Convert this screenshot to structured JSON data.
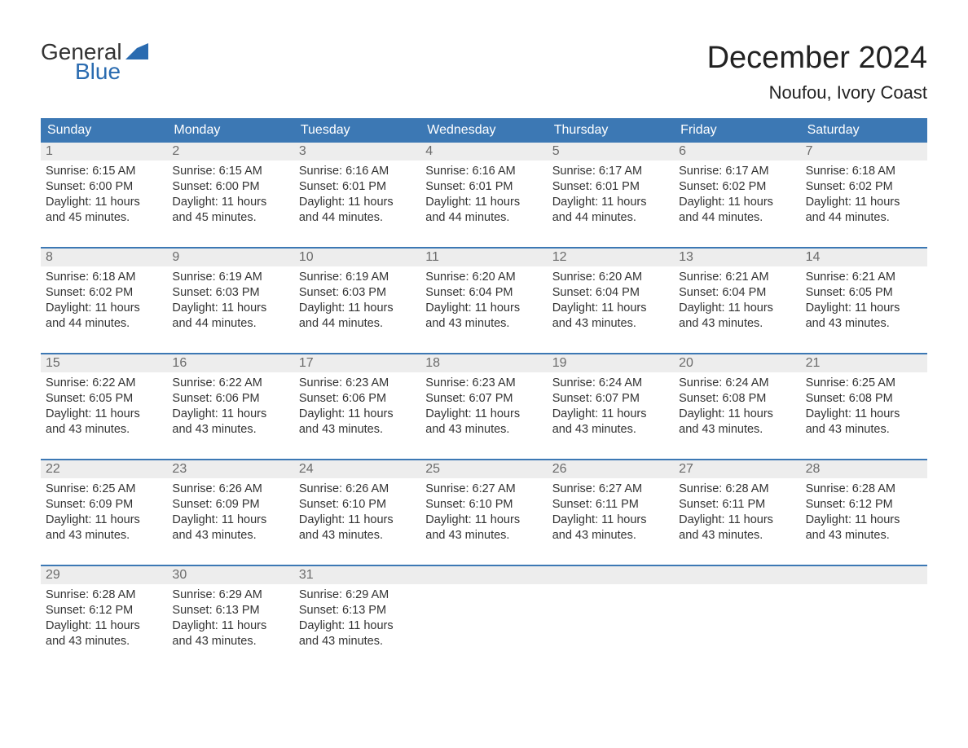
{
  "logo": {
    "text_general": "General",
    "text_blue": "Blue",
    "accent_color": "#2a6bb0"
  },
  "title": {
    "month": "December 2024",
    "location": "Noufou, Ivory Coast"
  },
  "calendar": {
    "header_bg": "#3c78b4",
    "header_fg": "#ffffff",
    "daynum_bg": "#ededed",
    "daynum_fg": "#6b6b6b",
    "rule_color": "#3c78b4",
    "text_color": "#333333",
    "days_of_week": [
      "Sunday",
      "Monday",
      "Tuesday",
      "Wednesday",
      "Thursday",
      "Friday",
      "Saturday"
    ],
    "weeks": [
      [
        {
          "n": "1",
          "sunrise": "Sunrise: 6:15 AM",
          "sunset": "Sunset: 6:00 PM",
          "d1": "Daylight: 11 hours",
          "d2": "and 45 minutes."
        },
        {
          "n": "2",
          "sunrise": "Sunrise: 6:15 AM",
          "sunset": "Sunset: 6:00 PM",
          "d1": "Daylight: 11 hours",
          "d2": "and 45 minutes."
        },
        {
          "n": "3",
          "sunrise": "Sunrise: 6:16 AM",
          "sunset": "Sunset: 6:01 PM",
          "d1": "Daylight: 11 hours",
          "d2": "and 44 minutes."
        },
        {
          "n": "4",
          "sunrise": "Sunrise: 6:16 AM",
          "sunset": "Sunset: 6:01 PM",
          "d1": "Daylight: 11 hours",
          "d2": "and 44 minutes."
        },
        {
          "n": "5",
          "sunrise": "Sunrise: 6:17 AM",
          "sunset": "Sunset: 6:01 PM",
          "d1": "Daylight: 11 hours",
          "d2": "and 44 minutes."
        },
        {
          "n": "6",
          "sunrise": "Sunrise: 6:17 AM",
          "sunset": "Sunset: 6:02 PM",
          "d1": "Daylight: 11 hours",
          "d2": "and 44 minutes."
        },
        {
          "n": "7",
          "sunrise": "Sunrise: 6:18 AM",
          "sunset": "Sunset: 6:02 PM",
          "d1": "Daylight: 11 hours",
          "d2": "and 44 minutes."
        }
      ],
      [
        {
          "n": "8",
          "sunrise": "Sunrise: 6:18 AM",
          "sunset": "Sunset: 6:02 PM",
          "d1": "Daylight: 11 hours",
          "d2": "and 44 minutes."
        },
        {
          "n": "9",
          "sunrise": "Sunrise: 6:19 AM",
          "sunset": "Sunset: 6:03 PM",
          "d1": "Daylight: 11 hours",
          "d2": "and 44 minutes."
        },
        {
          "n": "10",
          "sunrise": "Sunrise: 6:19 AM",
          "sunset": "Sunset: 6:03 PM",
          "d1": "Daylight: 11 hours",
          "d2": "and 44 minutes."
        },
        {
          "n": "11",
          "sunrise": "Sunrise: 6:20 AM",
          "sunset": "Sunset: 6:04 PM",
          "d1": "Daylight: 11 hours",
          "d2": "and 43 minutes."
        },
        {
          "n": "12",
          "sunrise": "Sunrise: 6:20 AM",
          "sunset": "Sunset: 6:04 PM",
          "d1": "Daylight: 11 hours",
          "d2": "and 43 minutes."
        },
        {
          "n": "13",
          "sunrise": "Sunrise: 6:21 AM",
          "sunset": "Sunset: 6:04 PM",
          "d1": "Daylight: 11 hours",
          "d2": "and 43 minutes."
        },
        {
          "n": "14",
          "sunrise": "Sunrise: 6:21 AM",
          "sunset": "Sunset: 6:05 PM",
          "d1": "Daylight: 11 hours",
          "d2": "and 43 minutes."
        }
      ],
      [
        {
          "n": "15",
          "sunrise": "Sunrise: 6:22 AM",
          "sunset": "Sunset: 6:05 PM",
          "d1": "Daylight: 11 hours",
          "d2": "and 43 minutes."
        },
        {
          "n": "16",
          "sunrise": "Sunrise: 6:22 AM",
          "sunset": "Sunset: 6:06 PM",
          "d1": "Daylight: 11 hours",
          "d2": "and 43 minutes."
        },
        {
          "n": "17",
          "sunrise": "Sunrise: 6:23 AM",
          "sunset": "Sunset: 6:06 PM",
          "d1": "Daylight: 11 hours",
          "d2": "and 43 minutes."
        },
        {
          "n": "18",
          "sunrise": "Sunrise: 6:23 AM",
          "sunset": "Sunset: 6:07 PM",
          "d1": "Daylight: 11 hours",
          "d2": "and 43 minutes."
        },
        {
          "n": "19",
          "sunrise": "Sunrise: 6:24 AM",
          "sunset": "Sunset: 6:07 PM",
          "d1": "Daylight: 11 hours",
          "d2": "and 43 minutes."
        },
        {
          "n": "20",
          "sunrise": "Sunrise: 6:24 AM",
          "sunset": "Sunset: 6:08 PM",
          "d1": "Daylight: 11 hours",
          "d2": "and 43 minutes."
        },
        {
          "n": "21",
          "sunrise": "Sunrise: 6:25 AM",
          "sunset": "Sunset: 6:08 PM",
          "d1": "Daylight: 11 hours",
          "d2": "and 43 minutes."
        }
      ],
      [
        {
          "n": "22",
          "sunrise": "Sunrise: 6:25 AM",
          "sunset": "Sunset: 6:09 PM",
          "d1": "Daylight: 11 hours",
          "d2": "and 43 minutes."
        },
        {
          "n": "23",
          "sunrise": "Sunrise: 6:26 AM",
          "sunset": "Sunset: 6:09 PM",
          "d1": "Daylight: 11 hours",
          "d2": "and 43 minutes."
        },
        {
          "n": "24",
          "sunrise": "Sunrise: 6:26 AM",
          "sunset": "Sunset: 6:10 PM",
          "d1": "Daylight: 11 hours",
          "d2": "and 43 minutes."
        },
        {
          "n": "25",
          "sunrise": "Sunrise: 6:27 AM",
          "sunset": "Sunset: 6:10 PM",
          "d1": "Daylight: 11 hours",
          "d2": "and 43 minutes."
        },
        {
          "n": "26",
          "sunrise": "Sunrise: 6:27 AM",
          "sunset": "Sunset: 6:11 PM",
          "d1": "Daylight: 11 hours",
          "d2": "and 43 minutes."
        },
        {
          "n": "27",
          "sunrise": "Sunrise: 6:28 AM",
          "sunset": "Sunset: 6:11 PM",
          "d1": "Daylight: 11 hours",
          "d2": "and 43 minutes."
        },
        {
          "n": "28",
          "sunrise": "Sunrise: 6:28 AM",
          "sunset": "Sunset: 6:12 PM",
          "d1": "Daylight: 11 hours",
          "d2": "and 43 minutes."
        }
      ],
      [
        {
          "n": "29",
          "sunrise": "Sunrise: 6:28 AM",
          "sunset": "Sunset: 6:12 PM",
          "d1": "Daylight: 11 hours",
          "d2": "and 43 minutes."
        },
        {
          "n": "30",
          "sunrise": "Sunrise: 6:29 AM",
          "sunset": "Sunset: 6:13 PM",
          "d1": "Daylight: 11 hours",
          "d2": "and 43 minutes."
        },
        {
          "n": "31",
          "sunrise": "Sunrise: 6:29 AM",
          "sunset": "Sunset: 6:13 PM",
          "d1": "Daylight: 11 hours",
          "d2": "and 43 minutes."
        },
        null,
        null,
        null,
        null
      ]
    ]
  }
}
